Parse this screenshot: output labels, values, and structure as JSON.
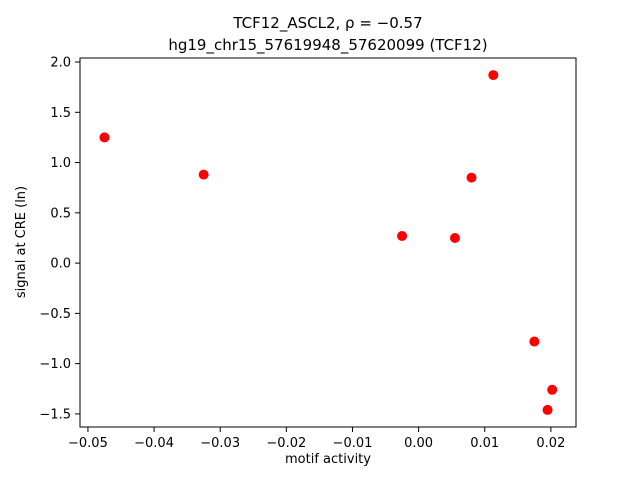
{
  "figure": {
    "title_line1": "TCF12_ASCL2, ρ = −0.57",
    "title_line2": "hg19_chr15_57619948_57620099 (TCF12)",
    "xlabel": "motif activity",
    "ylabel": "signal at CRE (ln)"
  },
  "chart_data": {
    "type": "scatter",
    "title": "TCF12_ASCL2, ρ = −0.57 | hg19_chr15_57619948_57620099 (TCF12)",
    "xlabel": "motif activity",
    "ylabel": "signal at CRE (ln)",
    "marker_color": "#ff0000",
    "axis_color": "#000000",
    "grid": false,
    "legend": "none",
    "xlim": [
      -0.0512,
      0.0238
    ],
    "ylim": [
      -1.63,
      2.04
    ],
    "xticks": {
      "values": [
        -0.05,
        -0.04,
        -0.03,
        -0.02,
        -0.01,
        0.0,
        0.01,
        0.02
      ],
      "labels": [
        "−0.05",
        "−0.04",
        "−0.03",
        "−0.02",
        "−0.01",
        "0.00",
        "0.01",
        "0.02"
      ]
    },
    "yticks": {
      "values": [
        -1.5,
        -1.0,
        -0.5,
        0.0,
        0.5,
        1.0,
        1.5,
        2.0
      ],
      "labels": [
        "−1.5",
        "−1.0",
        "−0.5",
        "0.0",
        "0.5",
        "1.0",
        "1.5",
        "2.0"
      ]
    },
    "points": [
      {
        "x": -0.0475,
        "y": 1.25
      },
      {
        "x": -0.0325,
        "y": 0.88
      },
      {
        "x": -0.0025,
        "y": 0.27
      },
      {
        "x": 0.0055,
        "y": 0.25
      },
      {
        "x": 0.008,
        "y": 0.85
      },
      {
        "x": 0.0113,
        "y": 1.87
      },
      {
        "x": 0.0175,
        "y": -0.78
      },
      {
        "x": 0.0195,
        "y": -1.46
      },
      {
        "x": 0.0202,
        "y": -1.26
      }
    ]
  }
}
